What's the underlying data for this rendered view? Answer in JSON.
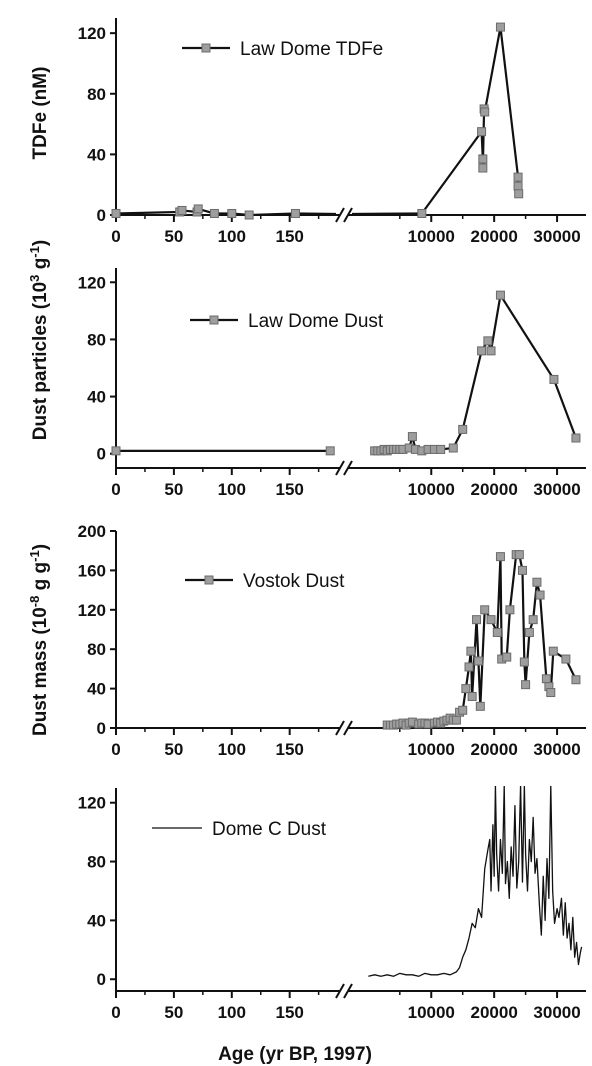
{
  "chart_data": [
    {
      "id": "tdfe",
      "type": "line",
      "ylabel": "TDFe (nM)",
      "ylim": [
        0,
        130
      ],
      "yticks": [
        0,
        40,
        80,
        120
      ],
      "legend": {
        "label": "Law Dome TDFe",
        "marker": "square"
      },
      "markers": true,
      "series": [
        {
          "name": "Law Dome TDFe",
          "recent": [
            [
              0,
              1
            ],
            [
              55,
              2
            ],
            [
              57,
              3
            ],
            [
              70,
              2
            ],
            [
              71,
              4
            ],
            [
              85,
              1
            ],
            [
              100,
              1
            ],
            [
              115,
              0
            ],
            [
              155,
              1
            ]
          ],
          "deep": [
            [
              8500,
              1
            ],
            [
              18000,
              55
            ],
            [
              18200,
              37
            ],
            [
              18200,
              31
            ],
            [
              18400,
              70
            ],
            [
              18500,
              68
            ],
            [
              21000,
              124
            ],
            [
              23800,
              25
            ],
            [
              23800,
              19
            ],
            [
              23900,
              14
            ]
          ]
        }
      ]
    },
    {
      "id": "lawdust",
      "type": "line",
      "ylabel": "Dust particles (10^3 g^-1)",
      "ylim": [
        -10,
        130
      ],
      "yticks": [
        0,
        40,
        80,
        120
      ],
      "legend": {
        "label": "Law Dome Dust",
        "marker": "square"
      },
      "markers": true,
      "series": [
        {
          "name": "Law Dome Dust",
          "recent": [
            [
              0,
              2
            ],
            [
              185,
              2
            ]
          ],
          "deep": [
            [
              1000,
              2
            ],
            [
              1500,
              2
            ],
            [
              2000,
              2
            ],
            [
              2500,
              3
            ],
            [
              3000,
              2
            ],
            [
              3500,
              3
            ],
            [
              4000,
              3
            ],
            [
              4500,
              3
            ],
            [
              5000,
              3
            ],
            [
              5500,
              3
            ],
            [
              6500,
              4
            ],
            [
              7000,
              12
            ],
            [
              7500,
              3
            ],
            [
              8500,
              2
            ],
            [
              9500,
              3
            ],
            [
              10500,
              3
            ],
            [
              11500,
              3
            ],
            [
              13500,
              4
            ],
            [
              15000,
              17
            ],
            [
              18000,
              72
            ],
            [
              19000,
              79
            ],
            [
              19500,
              72
            ],
            [
              21000,
              111
            ],
            [
              29500,
              52
            ],
            [
              33000,
              11
            ]
          ]
        }
      ]
    },
    {
      "id": "vostok",
      "type": "line",
      "ylabel": "Dust mass (10^-8 g g^-1)",
      "ylim": [
        0,
        200
      ],
      "yticks": [
        0,
        40,
        80,
        120,
        160,
        200
      ],
      "legend": {
        "label": "Vostok Dust",
        "marker": "square"
      },
      "markers": true,
      "series": [
        {
          "name": "Vostok Dust",
          "recent": [],
          "deep": [
            [
              3000,
              3
            ],
            [
              3500,
              3
            ],
            [
              4000,
              3
            ],
            [
              4500,
              4
            ],
            [
              5000,
              4
            ],
            [
              5500,
              5
            ],
            [
              6000,
              3
            ],
            [
              6500,
              5
            ],
            [
              7000,
              6
            ],
            [
              8000,
              4
            ],
            [
              8500,
              5
            ],
            [
              9000,
              5
            ],
            [
              9500,
              4
            ],
            [
              10500,
              5
            ],
            [
              11000,
              6
            ],
            [
              11500,
              5
            ],
            [
              12000,
              7
            ],
            [
              12500,
              8
            ],
            [
              13000,
              10
            ],
            [
              13500,
              8
            ],
            [
              14000,
              8
            ],
            [
              14500,
              16
            ],
            [
              15000,
              18
            ],
            [
              15500,
              40
            ],
            [
              16000,
              62
            ],
            [
              16300,
              78
            ],
            [
              16500,
              32
            ],
            [
              17200,
              110
            ],
            [
              17500,
              68
            ],
            [
              17800,
              22
            ],
            [
              18500,
              120
            ],
            [
              19500,
              110
            ],
            [
              20500,
              97
            ],
            [
              21000,
              174
            ],
            [
              21200,
              70
            ],
            [
              22000,
              72
            ],
            [
              22500,
              120
            ],
            [
              23500,
              176
            ],
            [
              24000,
              176
            ],
            [
              24500,
              160
            ],
            [
              24800,
              67
            ],
            [
              25000,
              44
            ],
            [
              25600,
              97
            ],
            [
              26200,
              110
            ],
            [
              26800,
              148
            ],
            [
              27300,
              135
            ],
            [
              28300,
              50
            ],
            [
              28700,
              42
            ],
            [
              29000,
              36
            ],
            [
              29400,
              78
            ],
            [
              31400,
              70
            ],
            [
              33000,
              49
            ]
          ]
        }
      ]
    },
    {
      "id": "domec",
      "type": "line",
      "ylim": [
        -8,
        130
      ],
      "yticks": [
        0,
        40,
        80,
        120
      ],
      "legend": {
        "label": "Dome C Dust",
        "marker": "none"
      },
      "markers": false,
      "xlabel": "Age (yr BP, 1997)",
      "series": [
        {
          "name": "Dome C Dust",
          "recent": [],
          "deep": [
            [
              0,
              2
            ],
            [
              1000,
              3
            ],
            [
              2000,
              2
            ],
            [
              3000,
              3
            ],
            [
              4000,
              2
            ],
            [
              5000,
              4
            ],
            [
              6000,
              3
            ],
            [
              7000,
              3
            ],
            [
              8000,
              2
            ],
            [
              9000,
              4
            ],
            [
              10000,
              3
            ],
            [
              11000,
              3
            ],
            [
              12000,
              4
            ],
            [
              13000,
              3
            ],
            [
              14000,
              5
            ],
            [
              14500,
              8
            ],
            [
              15000,
              15
            ],
            [
              15500,
              20
            ],
            [
              16000,
              28
            ],
            [
              16500,
              38
            ],
            [
              17000,
              35
            ],
            [
              17500,
              48
            ],
            [
              18000,
              42
            ],
            [
              18500,
              75
            ],
            [
              19000,
              88
            ],
            [
              19300,
              95
            ],
            [
              19500,
              60
            ],
            [
              19800,
              105
            ],
            [
              20000,
              70
            ],
            [
              20200,
              132
            ],
            [
              20400,
              85
            ],
            [
              20700,
              60
            ],
            [
              21000,
              95
            ],
            [
              21300,
              72
            ],
            [
              21600,
              132
            ],
            [
              21800,
              65
            ],
            [
              22100,
              80
            ],
            [
              22400,
              55
            ],
            [
              22700,
              90
            ],
            [
              23000,
              70
            ],
            [
              23300,
              118
            ],
            [
              23600,
              62
            ],
            [
              23900,
              80
            ],
            [
              24200,
              132
            ],
            [
              24500,
              66
            ],
            [
              24800,
              132
            ],
            [
              25000,
              85
            ],
            [
              25300,
              60
            ],
            [
              25600,
              95
            ],
            [
              25900,
              80
            ],
            [
              26200,
              110
            ],
            [
              26500,
              72
            ],
            [
              26800,
              82
            ],
            [
              27200,
              50
            ],
            [
              27500,
              30
            ],
            [
              27800,
              70
            ],
            [
              28100,
              40
            ],
            [
              28400,
              82
            ],
            [
              28700,
              55
            ],
            [
              29000,
              132
            ],
            [
              29300,
              60
            ],
            [
              29600,
              38
            ],
            [
              30000,
              48
            ],
            [
              30300,
              42
            ],
            [
              30700,
              55
            ],
            [
              31000,
              30
            ],
            [
              31300,
              52
            ],
            [
              31600,
              28
            ],
            [
              31900,
              38
            ],
            [
              32200,
              20
            ],
            [
              32500,
              42
            ],
            [
              32800,
              15
            ],
            [
              33100,
              25
            ],
            [
              33400,
              10
            ],
            [
              33700,
              18
            ],
            [
              33900,
              22
            ]
          ]
        }
      ]
    }
  ],
  "x_axis": {
    "recent_ticks": [
      0,
      50,
      100,
      150
    ],
    "deep_ticks": [
      10000,
      20000,
      30000
    ],
    "recent_range": [
      0,
      190
    ],
    "deep_range": [
      -2600,
      34600
    ]
  },
  "colors": {
    "line": "#111111",
    "marker_fill": "#9e9e9e",
    "marker_stroke": "#6b6b6b",
    "axis": "#111111"
  }
}
